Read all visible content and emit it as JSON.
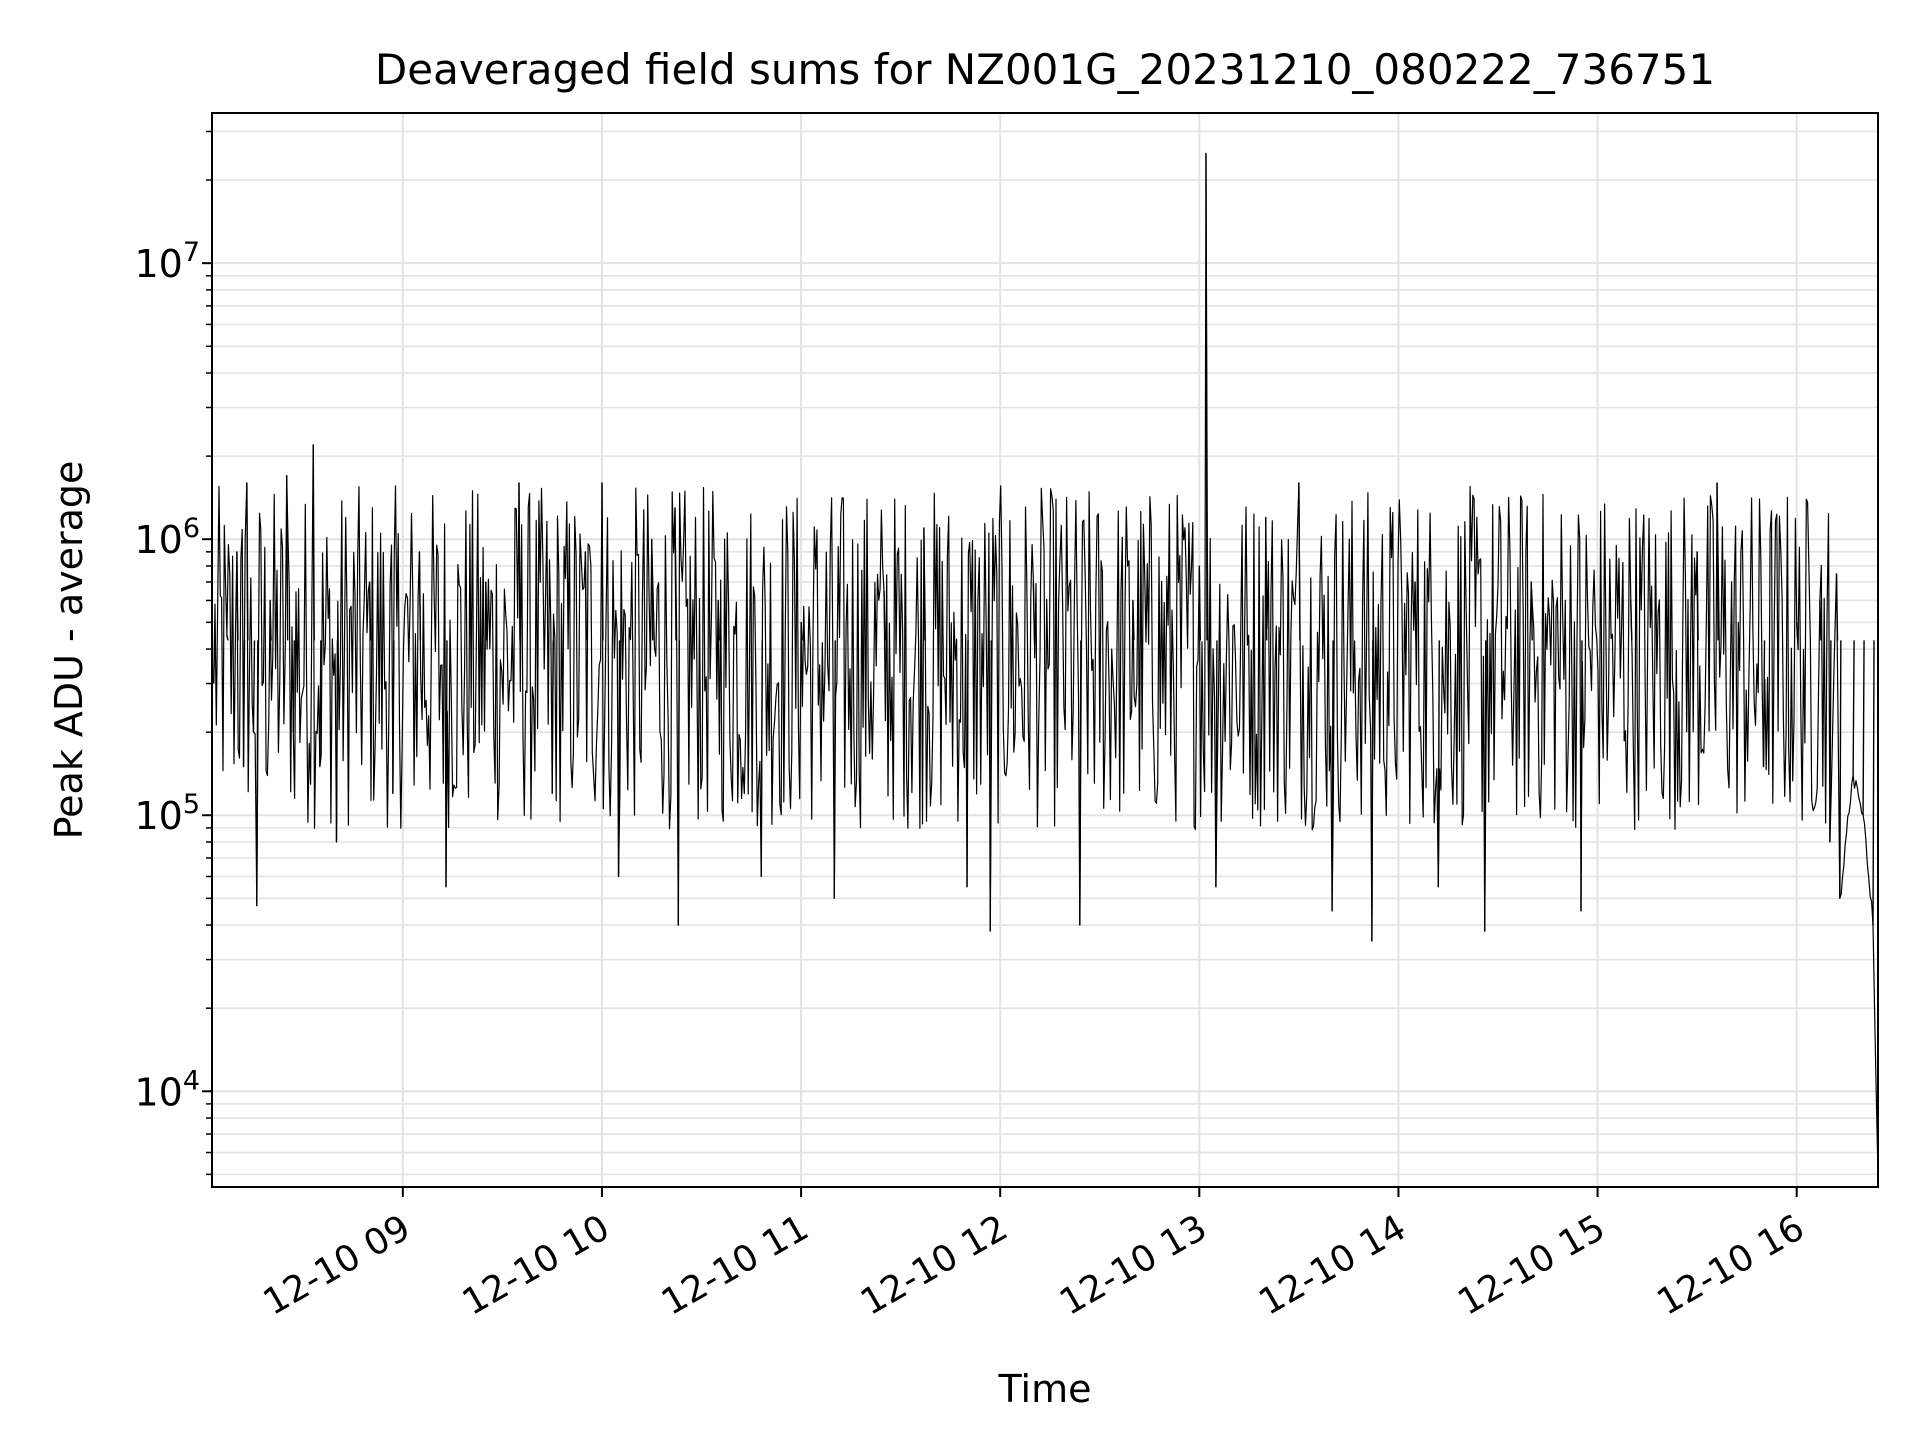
{
  "chart_data": {
    "type": "line",
    "title": "Deaveraged field sums for NZ001G_20231210_080222_736751",
    "xlabel": "Time",
    "ylabel": "Peak ADU - average",
    "x_range": [
      "2023-12-10T08:02:30",
      "2023-12-10T16:24:30"
    ],
    "ylim": [
      4500,
      35000000
    ],
    "yscale": "log",
    "grid": true,
    "x_ticks": [
      {
        "value": "2023-12-10T09:00:00",
        "label": "12-10 09"
      },
      {
        "value": "2023-12-10T10:00:00",
        "label": "12-10 10"
      },
      {
        "value": "2023-12-10T11:00:00",
        "label": "12-10 11"
      },
      {
        "value": "2023-12-10T12:00:00",
        "label": "12-10 12"
      },
      {
        "value": "2023-12-10T13:00:00",
        "label": "12-10 13"
      },
      {
        "value": "2023-12-10T14:00:00",
        "label": "12-10 14"
      },
      {
        "value": "2023-12-10T15:00:00",
        "label": "12-10 15"
      },
      {
        "value": "2023-12-10T16:00:00",
        "label": "12-10 16"
      }
    ],
    "y_ticks": [
      {
        "value": 10000,
        "base": "10",
        "exp": "4"
      },
      {
        "value": 100000,
        "base": "10",
        "exp": "5"
      },
      {
        "value": 1000000,
        "base": "10",
        "exp": "6"
      },
      {
        "value": 10000000,
        "base": "10",
        "exp": "7"
      }
    ],
    "series": [
      {
        "color": "#000000",
        "points": [
          [
            "2023-12-10T08:03:00",
            300000
          ],
          [
            "2023-12-10T08:07:00",
            450000
          ],
          [
            "2023-12-10T08:10:00",
            900000
          ],
          [
            "2023-12-10T08:12:00",
            150000
          ],
          [
            "2023-12-10T08:13:00",
            1600000
          ],
          [
            "2023-12-10T08:15:00",
            200000
          ],
          [
            "2023-12-10T08:16:00",
            47000
          ],
          [
            "2023-12-10T08:20:00",
            600000
          ],
          [
            "2023-12-10T08:25:00",
            1700000
          ],
          [
            "2023-12-10T08:27:00",
            200000
          ],
          [
            "2023-12-10T08:33:00",
            2200000
          ],
          [
            "2023-12-10T08:35:00",
            150000
          ],
          [
            "2023-12-10T08:40:00",
            80000
          ],
          [
            "2023-12-10T08:50:00",
            700000
          ],
          [
            "2023-12-10T08:57:00",
            120000
          ],
          [
            "2023-12-10T09:05:00",
            900000
          ],
          [
            "2023-12-10T09:13:00",
            55000
          ],
          [
            "2023-12-10T09:25:00",
            700000
          ],
          [
            "2023-12-10T09:35:00",
            1600000
          ],
          [
            "2023-12-10T09:45:00",
            120000
          ],
          [
            "2023-12-10T09:55:00",
            900000
          ],
          [
            "2023-12-10T10:00:00",
            1600000
          ],
          [
            "2023-12-10T10:05:00",
            60000
          ],
          [
            "2023-12-10T10:15:00",
            1000000
          ],
          [
            "2023-12-10T10:22:00",
            1300000
          ],
          [
            "2023-12-10T10:23:00",
            40000
          ],
          [
            "2023-12-10T10:35:00",
            600000
          ],
          [
            "2023-12-10T10:48:00",
            60000
          ],
          [
            "2023-12-10T11:00:00",
            500000
          ],
          [
            "2023-12-10T11:10:00",
            50000
          ],
          [
            "2023-12-10T11:25:00",
            650000
          ],
          [
            "2023-12-10T11:37:00",
            1100000
          ],
          [
            "2023-12-10T11:50:00",
            55000
          ],
          [
            "2023-12-10T11:57:00",
            38000
          ],
          [
            "2023-12-10T12:10:00",
            700000
          ],
          [
            "2023-12-10T12:24:00",
            40000
          ],
          [
            "2023-12-10T12:40:00",
            600000
          ],
          [
            "2023-12-10T13:00:00",
            800000
          ],
          [
            "2023-12-10T13:02:00",
            25000000
          ],
          [
            "2023-12-10T13:05:00",
            55000
          ],
          [
            "2023-12-10T13:20:00",
            1200000
          ],
          [
            "2023-12-10T13:30:00",
            1600000
          ],
          [
            "2023-12-10T13:40:00",
            45000
          ],
          [
            "2023-12-10T13:52:00",
            35000
          ],
          [
            "2023-12-10T14:05:00",
            700000
          ],
          [
            "2023-12-10T14:12:00",
            55000
          ],
          [
            "2023-12-10T14:26:00",
            38000
          ],
          [
            "2023-12-10T14:40:00",
            700000
          ],
          [
            "2023-12-10T14:55:00",
            45000
          ],
          [
            "2023-12-10T15:10:00",
            600000
          ],
          [
            "2023-12-10T15:30:00",
            900000
          ],
          [
            "2023-12-10T15:36:00",
            1600000
          ],
          [
            "2023-12-10T15:50:00",
            150000
          ],
          [
            "2023-12-10T16:00:00",
            500000
          ],
          [
            "2023-12-10T16:07:00",
            600000
          ],
          [
            "2023-12-10T16:10:00",
            80000
          ],
          [
            "2023-12-10T16:12:00",
            750000
          ],
          [
            "2023-12-10T16:13:00",
            50000
          ],
          [
            "2023-12-10T16:17:00",
            140000
          ],
          [
            "2023-12-10T16:20:00",
            100000
          ],
          [
            "2023-12-10T16:23:00",
            40000
          ],
          [
            "2023-12-10T16:24:30",
            5000
          ]
        ]
      }
    ]
  }
}
